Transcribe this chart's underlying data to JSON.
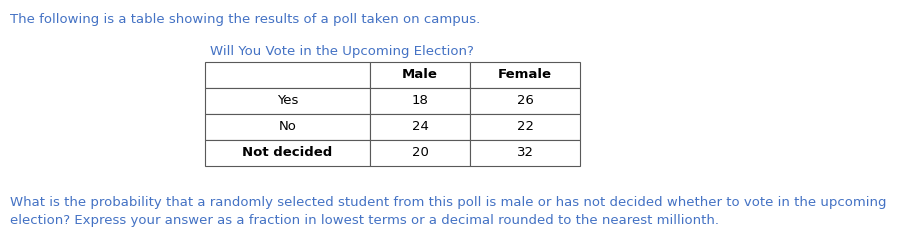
{
  "intro_text": "The following is a table showing the results of a poll taken on campus.",
  "table_title": "Will You Vote in the Upcoming Election?",
  "col_headers": [
    "",
    "Male",
    "Female"
  ],
  "rows": [
    [
      "Yes",
      "18",
      "26"
    ],
    [
      "No",
      "24",
      "22"
    ],
    [
      "Not decided",
      "20",
      "32"
    ]
  ],
  "question_text_line1": "What is the probability that a randomly selected student from this poll is male or has not decided whether to vote in the upcoming",
  "question_text_line2": "election? Express your answer as a fraction in lowest terms or a decimal rounded to the nearest millionth.",
  "intro_color": "#4472c4",
  "table_title_color": "#4472c4",
  "question_color": "#4472c4",
  "bg_color": "#ffffff",
  "border_color": "#595959",
  "intro_fontsize": 9.5,
  "table_title_fontsize": 9.5,
  "table_fontsize": 9.5,
  "question_fontsize": 9.5
}
